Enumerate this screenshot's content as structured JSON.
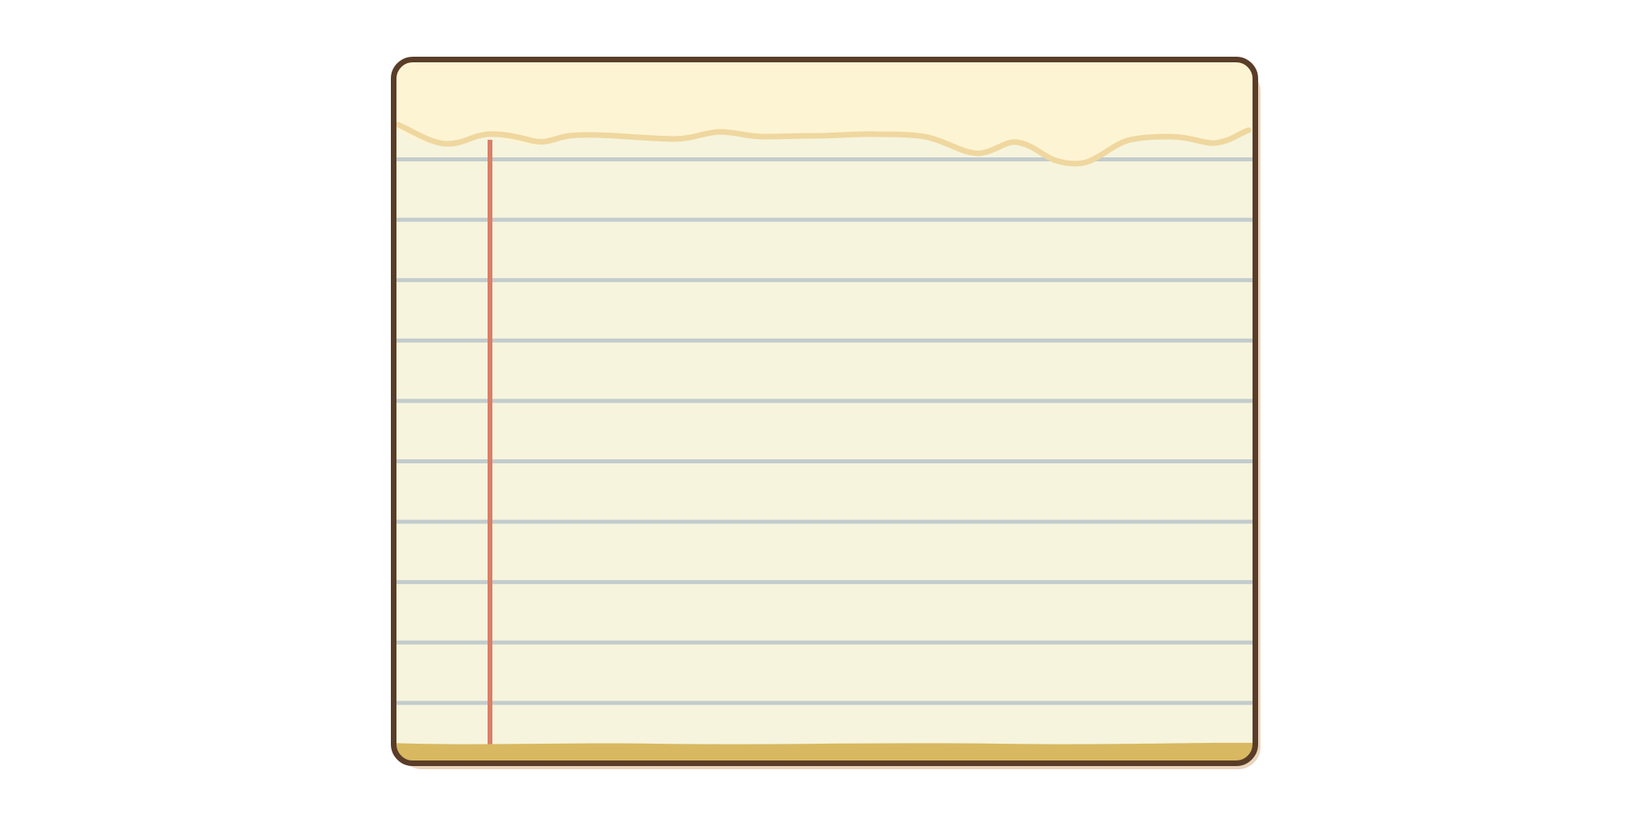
{
  "notepad": {
    "colors": {
      "frame": "#5a3d28",
      "shadow": "#ead4bd",
      "header": "#fdf4d4",
      "tear_edge": "#efd79f",
      "paper": "#f6f4dd",
      "rule_line": "#c3cccd",
      "margin_line": "#db7f67",
      "bottom_strip": "#d8b961"
    },
    "ruled_line_count": 10,
    "has_margin_line": true,
    "has_torn_header": true
  }
}
